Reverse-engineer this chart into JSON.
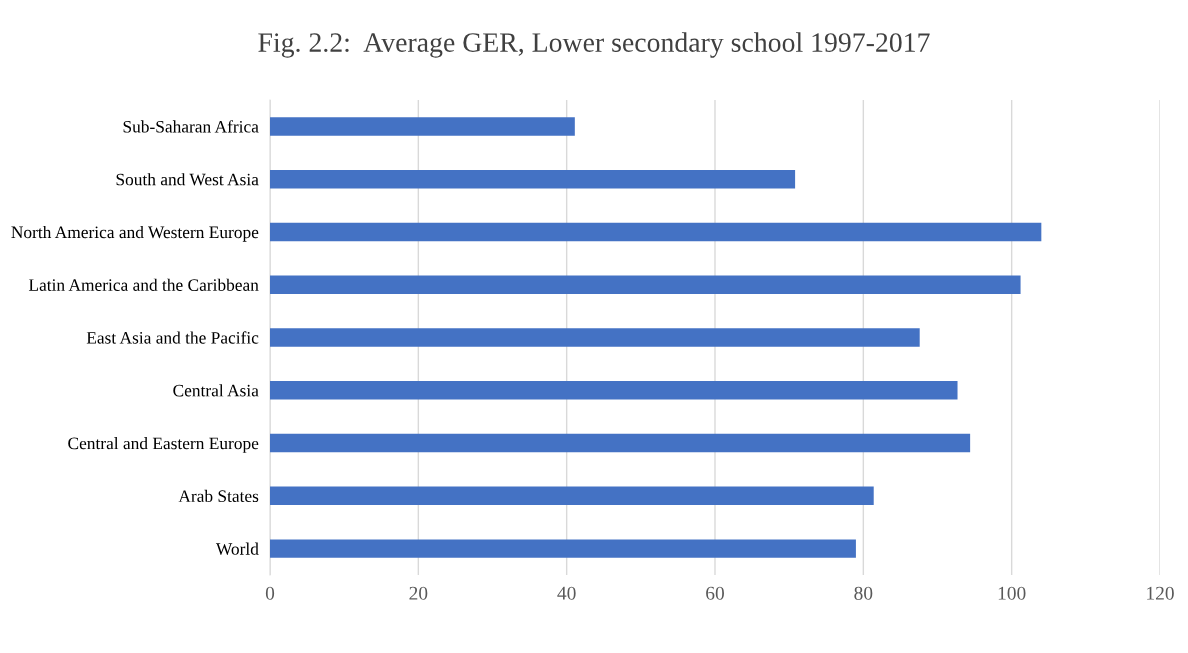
{
  "chart_data": {
    "type": "bar",
    "orientation": "horizontal",
    "title": "Fig. 2.2:  Average GER, Lower secondary school 1997-2017",
    "categories": [
      "Sub-Saharan Africa",
      "South and West Asia",
      "North America and Western Europe",
      "Latin America and the Caribbean",
      "East Asia and the Pacific",
      "Central Asia",
      "Central and Eastern Europe",
      "Arab States",
      "World"
    ],
    "values": [
      41.1,
      70.8,
      104.0,
      101.2,
      87.6,
      92.7,
      94.4,
      81.4,
      79.0
    ],
    "color": "#4472c4",
    "xlim": [
      0,
      120
    ],
    "xticks": [
      0,
      20,
      40,
      60,
      80,
      100,
      120
    ],
    "grid": "x"
  }
}
